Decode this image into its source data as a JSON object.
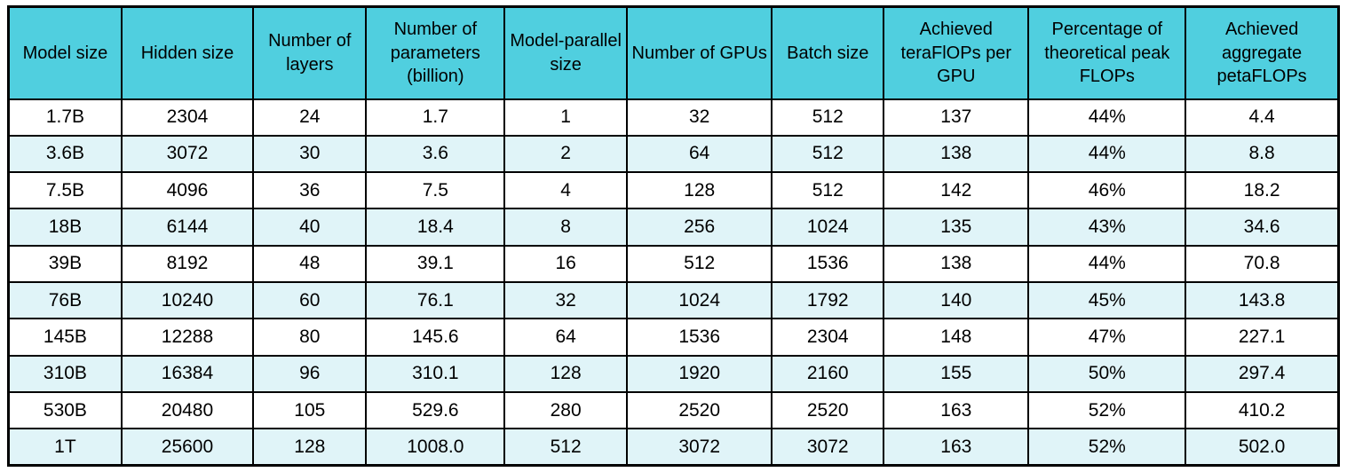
{
  "colors": {
    "header_bg": "#50CFDF",
    "row_alt_bg": "#E0F4F8",
    "row_bg": "#FFFFFF",
    "border": "#000000",
    "text": "#000000"
  },
  "chart_data": {
    "type": "table",
    "columns": [
      "Model size",
      "Hidden size",
      "Number of layers",
      "Number of parameters (billion)",
      "Model-parallel size",
      "Number of GPUs",
      "Batch size",
      "Achieved teraFlOPs per GPU",
      "Percentage of theoretical peak FLOPs",
      "Achieved aggregate petaFLOPs"
    ],
    "rows": [
      [
        "1.7B",
        "2304",
        "24",
        "1.7",
        "1",
        "32",
        "512",
        "137",
        "44%",
        "4.4"
      ],
      [
        "3.6B",
        "3072",
        "30",
        "3.6",
        "2",
        "64",
        "512",
        "138",
        "44%",
        "8.8"
      ],
      [
        "7.5B",
        "4096",
        "36",
        "7.5",
        "4",
        "128",
        "512",
        "142",
        "46%",
        "18.2"
      ],
      [
        "18B",
        "6144",
        "40",
        "18.4",
        "8",
        "256",
        "1024",
        "135",
        "43%",
        "34.6"
      ],
      [
        "39B",
        "8192",
        "48",
        "39.1",
        "16",
        "512",
        "1536",
        "138",
        "44%",
        "70.8"
      ],
      [
        "76B",
        "10240",
        "60",
        "76.1",
        "32",
        "1024",
        "1792",
        "140",
        "45%",
        "143.8"
      ],
      [
        "145B",
        "12288",
        "80",
        "145.6",
        "64",
        "1536",
        "2304",
        "148",
        "47%",
        "227.1"
      ],
      [
        "310B",
        "16384",
        "96",
        "310.1",
        "128",
        "1920",
        "2160",
        "155",
        "50%",
        "297.4"
      ],
      [
        "530B",
        "20480",
        "105",
        "529.6",
        "280",
        "2520",
        "2520",
        "163",
        "52%",
        "410.2"
      ],
      [
        "1T",
        "25600",
        "128",
        "1008.0",
        "512",
        "3072",
        "3072",
        "163",
        "52%",
        "502.0"
      ]
    ]
  }
}
